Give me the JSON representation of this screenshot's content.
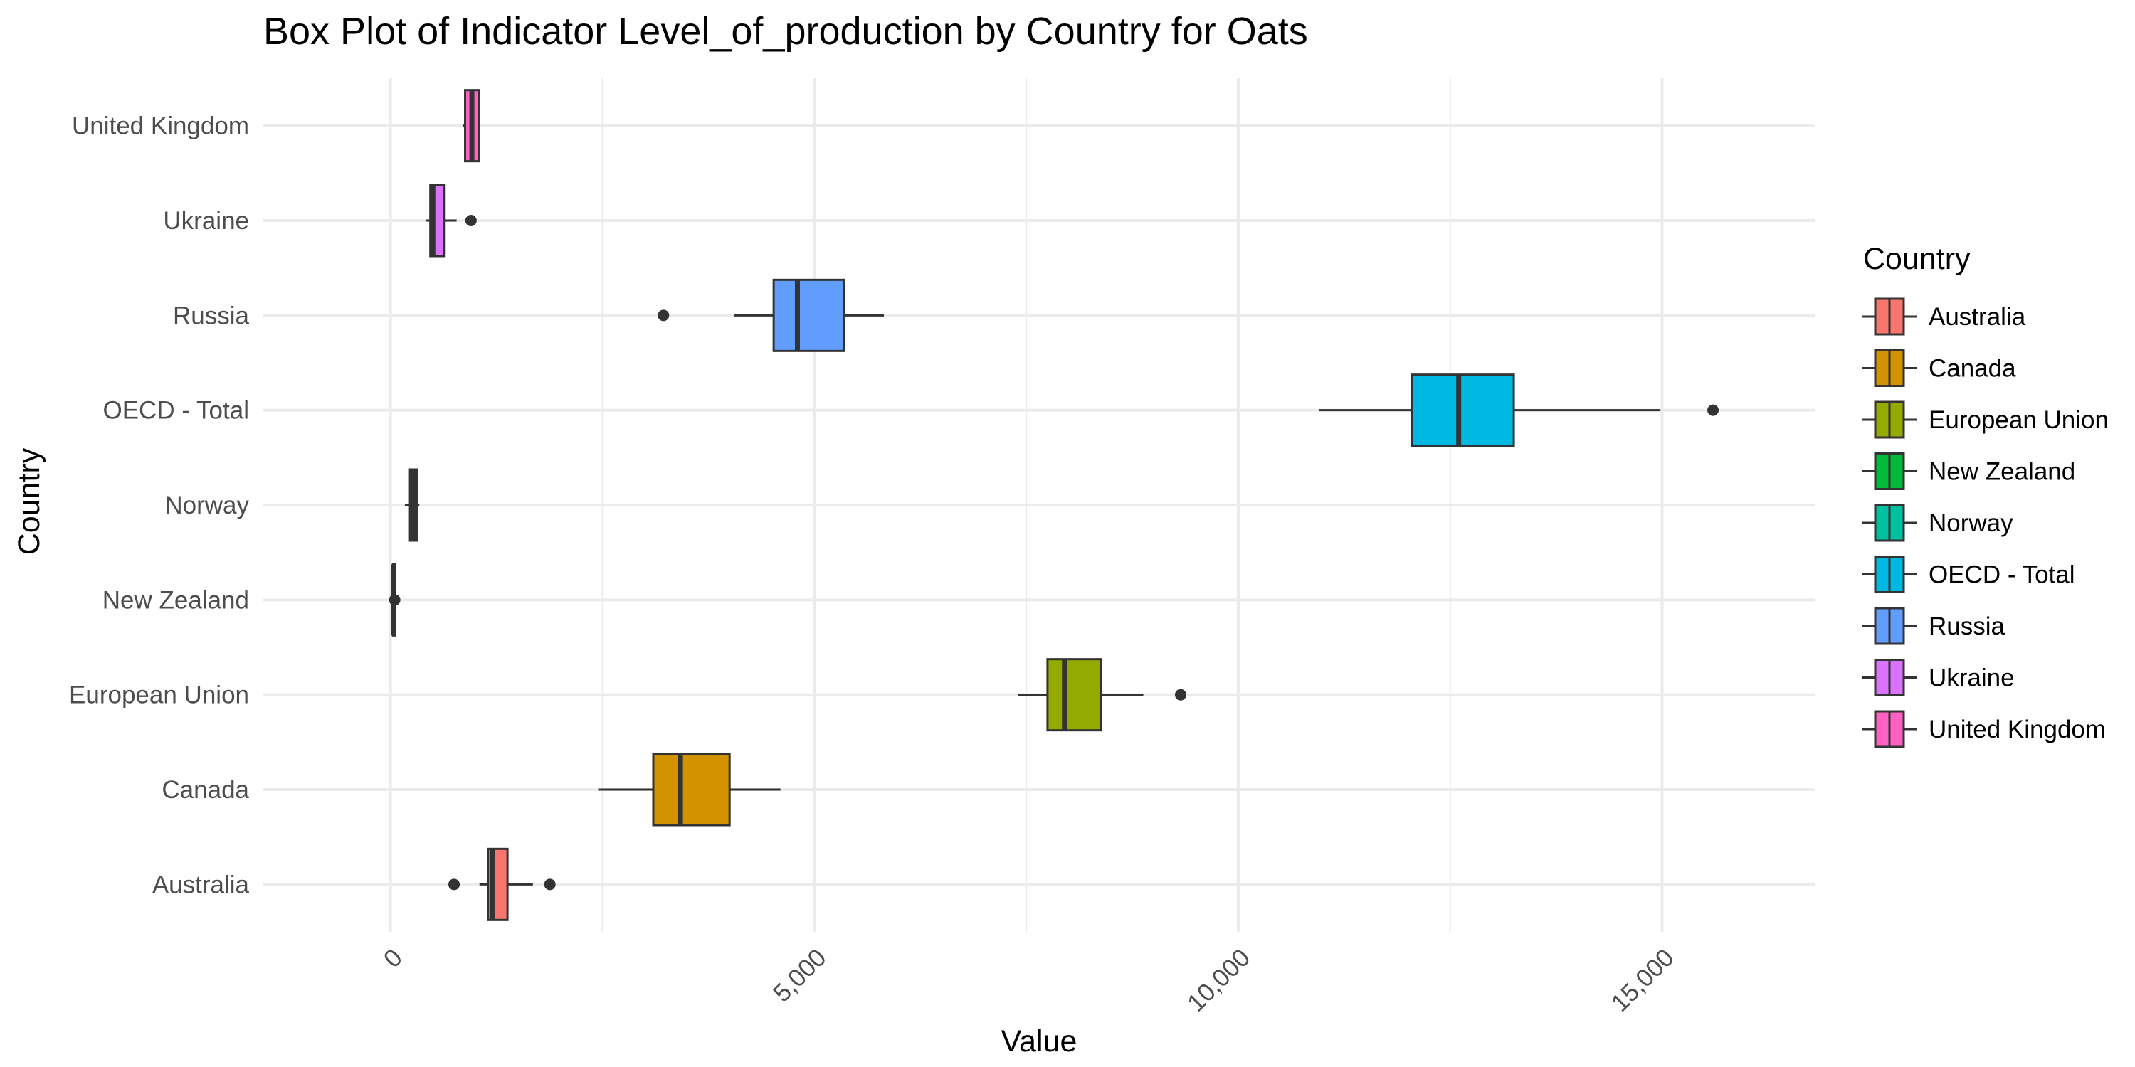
{
  "chart_data": {
    "type": "boxplot",
    "title": "Box Plot of Indicator Level_of_production by Country for Oats",
    "xlabel": "Value",
    "ylabel": "Country",
    "xlim": [
      -1500,
      16800
    ],
    "x_ticks": [
      0,
      5000,
      10000,
      15000
    ],
    "x_tick_labels": [
      "0",
      "5,000",
      "10,000",
      "15,000"
    ],
    "grid": true,
    "legend_title": "Country",
    "legend_position": "right",
    "categories": [
      "Australia",
      "Canada",
      "European Union",
      "New Zealand",
      "Norway",
      "OECD - Total",
      "Russia",
      "Ukraine",
      "United Kingdom"
    ],
    "series": [
      {
        "name": "Australia",
        "color": "#F8766D",
        "whisker_low": 1050,
        "q1": 1150,
        "median": 1200,
        "q3": 1380,
        "whisker_high": 1680,
        "outliers": [
          750,
          1880
        ]
      },
      {
        "name": "Canada",
        "color": "#D39200",
        "whisker_low": 2450,
        "q1": 3100,
        "median": 3420,
        "q3": 4000,
        "whisker_high": 4600,
        "outliers": []
      },
      {
        "name": "European Union",
        "color": "#93AA00",
        "whisker_low": 7400,
        "q1": 7750,
        "median": 7950,
        "q3": 8380,
        "whisker_high": 8880,
        "outliers": [
          9320
        ]
      },
      {
        "name": "New Zealand",
        "color": "#00BA38",
        "whisker_low": 20,
        "q1": 30,
        "median": 40,
        "q3": 50,
        "whisker_high": 60,
        "outliers": [
          50
        ]
      },
      {
        "name": "Norway",
        "color": "#00C19F",
        "whisker_low": 170,
        "q1": 230,
        "median": 270,
        "q3": 310,
        "whisker_high": 340,
        "outliers": []
      },
      {
        "name": "OECD - Total",
        "color": "#00B9E3",
        "whisker_low": 10950,
        "q1": 12050,
        "median": 12600,
        "q3": 13250,
        "whisker_high": 14980,
        "outliers": [
          15600
        ]
      },
      {
        "name": "Russia",
        "color": "#619CFF",
        "whisker_low": 4050,
        "q1": 4520,
        "median": 4800,
        "q3": 5350,
        "whisker_high": 5820,
        "outliers": [
          3220
        ]
      },
      {
        "name": "Ukraine",
        "color": "#DB72FB",
        "whisker_low": 420,
        "q1": 470,
        "median": 500,
        "q3": 630,
        "whisker_high": 780,
        "outliers": [
          950
        ]
      },
      {
        "name": "United Kingdom",
        "color": "#FF61C3",
        "whisker_low": 850,
        "q1": 880,
        "median": 960,
        "q3": 1040,
        "whisker_high": 1060,
        "outliers": []
      }
    ]
  }
}
